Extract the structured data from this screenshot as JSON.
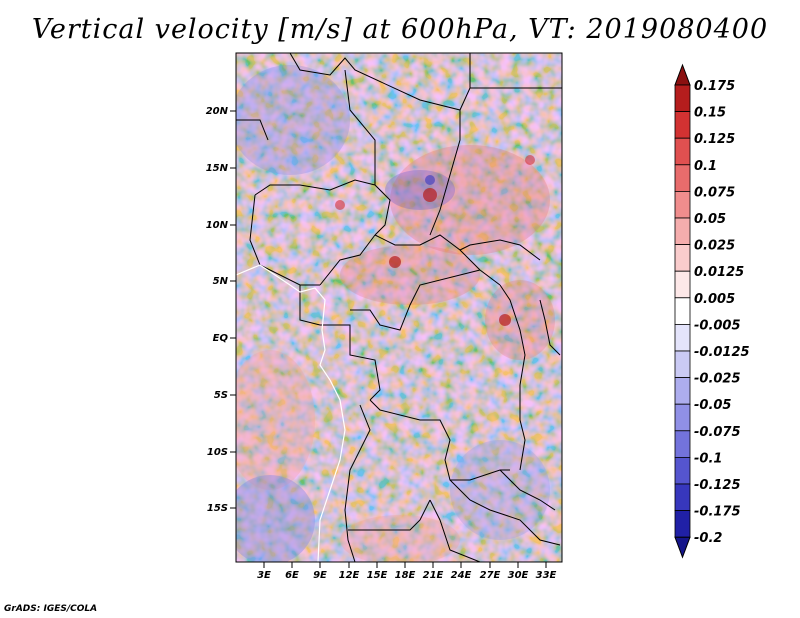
{
  "title": "Vertical velocity [m/s] at 600hPa, VT: 2019080400",
  "credit": "GrADS: IGES/COLA",
  "lat_labels": [
    "20N",
    "15N",
    "10N",
    "5N",
    "EQ",
    "5S",
    "10S",
    "15S"
  ],
  "lon_labels": [
    "3E",
    "6E",
    "9E",
    "12E",
    "15E",
    "18E",
    "21E",
    "24E",
    "27E",
    "30E",
    "33E"
  ],
  "colorbar": {
    "labels": [
      "0.175",
      "0.15",
      "0.125",
      "0.1",
      "0.075",
      "0.05",
      "0.025",
      "0.0125",
      "0.005",
      "-0.005",
      "-0.0125",
      "-0.025",
      "-0.05",
      "-0.075",
      "-0.1",
      "-0.125",
      "-0.175",
      "-0.2"
    ],
    "colors": [
      "#8b1010",
      "#b51d1d",
      "#d23232",
      "#e05050",
      "#e86c6c",
      "#f08d8d",
      "#f5adad",
      "#f9cccc",
      "#fde8e8",
      "#ffffff",
      "#e4e4fb",
      "#cacaf4",
      "#adadee",
      "#9090e6",
      "#7373dc",
      "#5555cf",
      "#3737bd",
      "#2020a6",
      "#15158a"
    ]
  }
}
